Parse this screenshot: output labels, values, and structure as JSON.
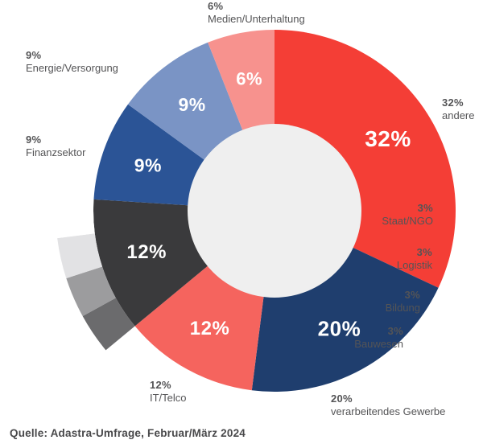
{
  "chart_data": {
    "type": "donut",
    "title": "",
    "unit": "%",
    "start_angle_deg": 0,
    "direction": "clockwise",
    "hole_color": "#EFEFEF",
    "background": "#FFFFFF",
    "label_color": "#545456",
    "value_label_color": "#FFFFFF",
    "segments": [
      {
        "id": "andere",
        "label": "andere",
        "value": 32,
        "pct_label": "32%",
        "color": "#F43E36"
      },
      {
        "id": "verarbeitendes-gewerbe",
        "label": "verarbeitendes Gewerbe",
        "value": 20,
        "pct_label": "20%",
        "color": "#1F3E6E"
      },
      {
        "id": "it-telco",
        "label": "IT/Telco",
        "value": 12,
        "pct_label": "12%",
        "color": "#F5645E"
      },
      {
        "id": "sonstige-gruppe",
        "label": "",
        "value": 12,
        "pct_label": "12%",
        "color": "#3A3A3C",
        "sub_segments": [
          {
            "id": "bauwesen",
            "label": "Bauwesen",
            "value": 3,
            "pct_label": "3%",
            "color": "#6B6B6D"
          },
          {
            "id": "bildung",
            "label": "Bildung",
            "value": 3,
            "pct_label": "3%",
            "color": "#9C9C9E"
          },
          {
            "id": "logistik",
            "label": "Logistik",
            "value": 3,
            "pct_label": "3%",
            "color": "#E2E2E4"
          },
          {
            "id": "staat-ngo",
            "label": "Staat/NGO",
            "value": 3,
            "pct_label": "3%",
            "color": "#FFFFFF"
          }
        ]
      },
      {
        "id": "finanzsektor",
        "label": "Finanzsektor",
        "value": 9,
        "pct_label": "9%",
        "color": "#2B5496"
      },
      {
        "id": "energie-versorgung",
        "label": "Energie/Versorgung",
        "value": 9,
        "pct_label": "9%",
        "color": "#7A94C5"
      },
      {
        "id": "medien-unterhaltung",
        "label": "Medien/Unterhaltung",
        "value": 6,
        "pct_label": "6%",
        "color": "#F7928E"
      }
    ]
  },
  "source": "Quelle: Adastra-Umfrage, Februar/März 2024"
}
